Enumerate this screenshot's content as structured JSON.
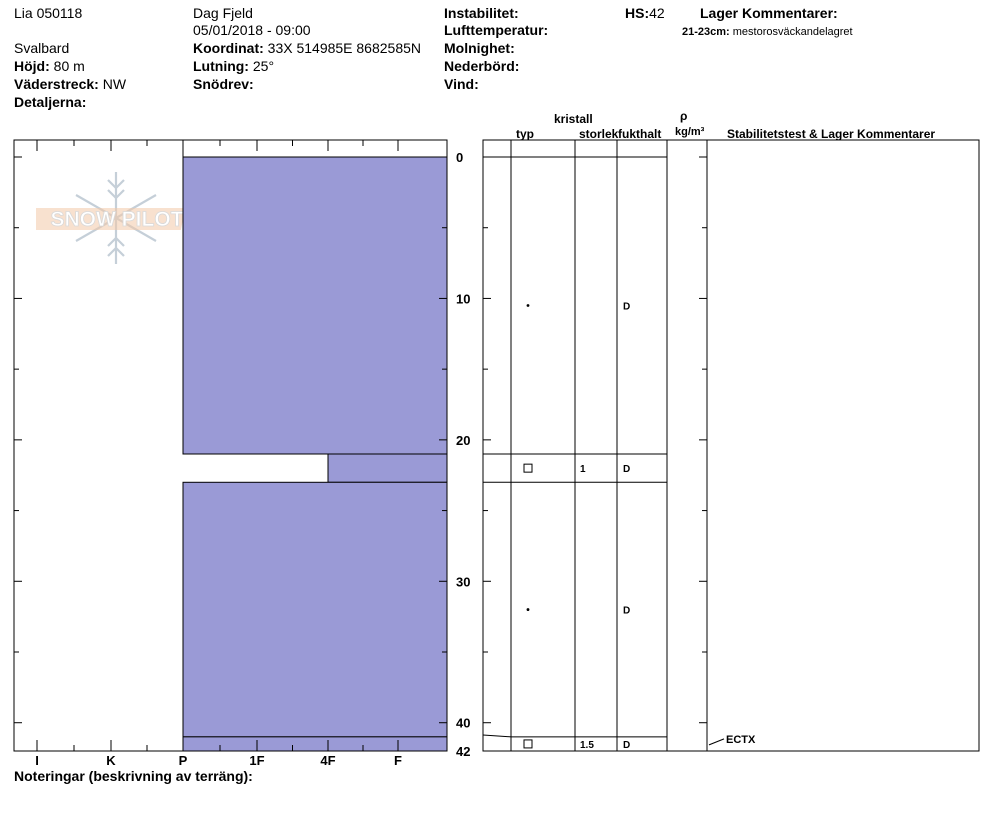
{
  "header": {
    "site": "Lia 050118",
    "observer": "Dag Fjeld",
    "datetime": "05/01/2018 - 09:00",
    "region": "Svalbard",
    "elevation_label": "Höjd:",
    "elevation_value": "80 m",
    "aspect_label": "Väderstreck:",
    "aspect_value": "NW",
    "details_label": "Detaljerna:",
    "coord_label": "Koordinat:",
    "coord_value": "33X 514985E 8682585N",
    "slope_label": "Lutning:",
    "slope_value": "25°",
    "drift_label": "Snödrev:",
    "instability_label": "Instabilitet:",
    "airtemp_label": "Lufttemperatur:",
    "cloud_label": "Molnighet:",
    "precip_label": "Nederbörd:",
    "wind_label": "Vind:",
    "hs_label": "HS:",
    "hs_value": "42",
    "layer_comments_label": "Lager Kommentarer:",
    "layer_comment_range": "21-23cm:",
    "layer_comment_text": "mestorosväckandelagret"
  },
  "logo": {
    "text": "SNOW PILOT"
  },
  "table_headers": {
    "crystal": "kristall",
    "type": "typ",
    "size": "storlek",
    "moisture": "fukthalt",
    "rho": "ρ",
    "density_unit": "kg/m³",
    "stability": "Stabilitetstest & Lager Kommentarer"
  },
  "footer": {
    "notes_label": "Noteringar (beskrivning av terräng):"
  },
  "chart_data": {
    "type": "bar",
    "hardness_categories": [
      "I",
      "K",
      "P",
      "1F",
      "4F",
      "F"
    ],
    "depth_ticks": [
      0,
      10,
      20,
      30,
      40,
      42
    ],
    "ylim": [
      0,
      42
    ],
    "layers": [
      {
        "top": 0,
        "bottom": 21,
        "hardness": "P",
        "grain": "dot",
        "size": "",
        "moisture": "D"
      },
      {
        "top": 21,
        "bottom": 23,
        "hardness": "4F",
        "grain": "square",
        "size": "1",
        "moisture": "D"
      },
      {
        "top": 23,
        "bottom": 41,
        "hardness": "P",
        "grain": "dot",
        "size": "",
        "moisture": "D"
      },
      {
        "top": 41,
        "bottom": 42,
        "hardness": "P",
        "grain": "square",
        "size": "1.5",
        "moisture": "D"
      }
    ],
    "tests": [
      {
        "depth": 41,
        "label": "ECTX"
      }
    ],
    "colors": {
      "layer_fill": "#9a9ad6"
    }
  }
}
